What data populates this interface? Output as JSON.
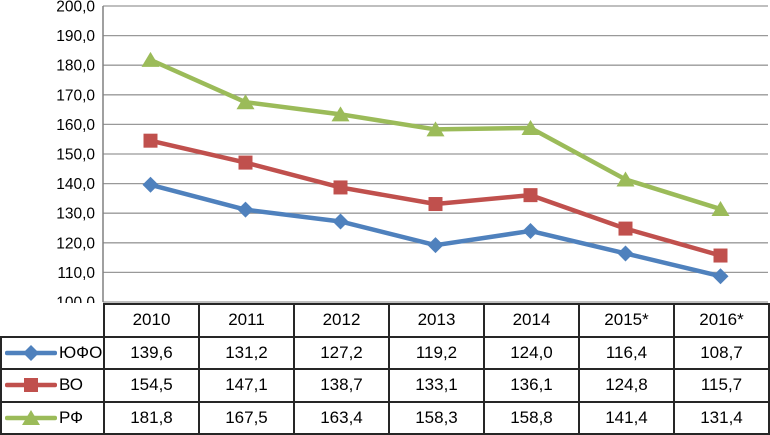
{
  "chart_data": {
    "type": "line",
    "categories": [
      "2010",
      "2011",
      "2012",
      "2013",
      "2014",
      "2015*",
      "2016*"
    ],
    "series": [
      {
        "name": "ЮФО",
        "marker": "diamond",
        "color": "#4F81BD",
        "values": [
          139.6,
          131.2,
          127.2,
          119.2,
          124.0,
          116.4,
          108.7
        ]
      },
      {
        "name": "ВО",
        "marker": "square",
        "color": "#C0504D",
        "values": [
          154.5,
          147.1,
          138.7,
          133.1,
          136.1,
          124.8,
          115.7
        ]
      },
      {
        "name": "РФ",
        "marker": "triangle",
        "color": "#9BBB59",
        "values": [
          181.8,
          167.5,
          163.4,
          158.3,
          158.8,
          141.4,
          131.4
        ]
      }
    ],
    "title": "",
    "xlabel": "",
    "ylabel": "",
    "ylim": [
      100,
      200
    ],
    "ytick_step": 10,
    "ytick_labels": [
      "100,0",
      "110,0",
      "120,0",
      "130,0",
      "140,0",
      "150,0",
      "160,0",
      "170,0",
      "180,0",
      "190,0",
      "200,0"
    ],
    "grid": true,
    "legend_position": "table-left",
    "decimal_separator": ","
  },
  "style_colors": {
    "gridline": "#999999",
    "axis": "#808080",
    "table_border": "#262626",
    "text": "#000000",
    "background": "#ffffff"
  }
}
